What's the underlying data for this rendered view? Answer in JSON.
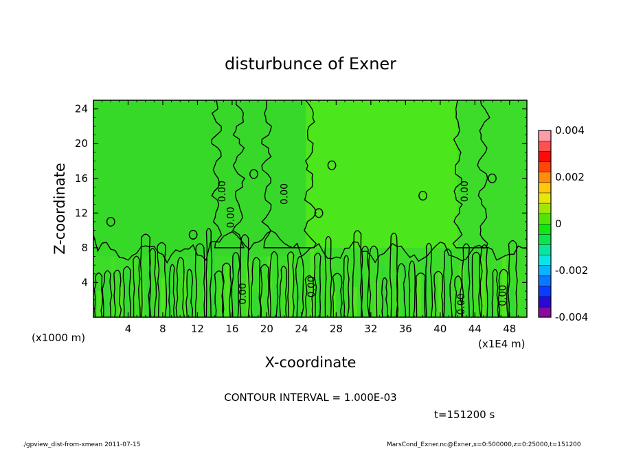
{
  "chart_data": {
    "type": "heatmap",
    "title": "disturbunce of Exner",
    "xlabel": "X-coordinate",
    "ylabel": "Z-coordinate",
    "x_unit": "(x1E4 m)",
    "y_unit": "(x1000 m)",
    "xlim": [
      0,
      50
    ],
    "ylim": [
      0,
      25
    ],
    "x_ticks": [
      "4",
      "8",
      "12",
      "16",
      "20",
      "24",
      "28",
      "32",
      "36",
      "40",
      "44",
      "48"
    ],
    "y_ticks": [
      "4",
      "8",
      "12",
      "16",
      "20",
      "24"
    ],
    "colorbar": {
      "range": [
        -0.004,
        0.004
      ],
      "tick_labels": [
        "0.004",
        "0.002",
        "0",
        "-0.002",
        "-0.004"
      ],
      "colors": [
        "#8a0aa0",
        "#2a0ad2",
        "#0a3cff",
        "#0a78ff",
        "#0ab4ff",
        "#0ae6e6",
        "#0ae6a0",
        "#0ae650",
        "#14e614",
        "#50e60a",
        "#a0e60a",
        "#e6e60a",
        "#ffc80a",
        "#ff8c0a",
        "#ff460a",
        "#ff0a0a",
        "#ff5050",
        "#ff9aa8"
      ]
    },
    "contour_labels": [
      "0.00",
      "0.00",
      "0.00",
      "0.00",
      "0.00",
      "0.00",
      "0.00",
      "0.00"
    ],
    "contour_interval_text": "CONTOUR INTERVAL = 1.000E-03",
    "time_text": "t=151200 s"
  },
  "footer": {
    "left": "./gpview_dist-from-xmean  2011-07-15",
    "right": "MarsCond_Exner.nc@Exner,x=0:500000,z=0:25000,t=151200"
  }
}
